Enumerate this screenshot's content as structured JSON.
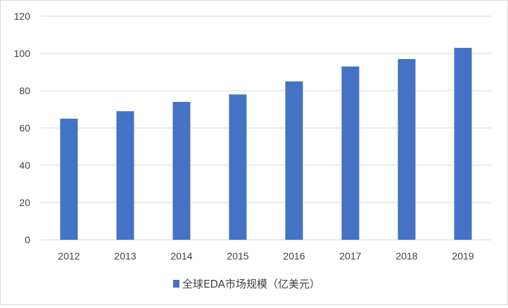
{
  "chart_data": {
    "type": "bar",
    "categories": [
      "2012",
      "2013",
      "2014",
      "2015",
      "2016",
      "2017",
      "2018",
      "2019"
    ],
    "series": [
      {
        "name": "全球EDA市场规模（亿美元）",
        "values": [
          65,
          69,
          74,
          78,
          85,
          93,
          97,
          103
        ],
        "color": "#4472c4"
      }
    ],
    "ylim": [
      0,
      120
    ],
    "yticks": [
      0,
      20,
      40,
      60,
      80,
      100,
      120
    ],
    "grid": true,
    "legend_position": "bottom",
    "colors": {
      "bar": "#4472c4",
      "grid": "#d9d9d9",
      "text": "#404040"
    }
  }
}
